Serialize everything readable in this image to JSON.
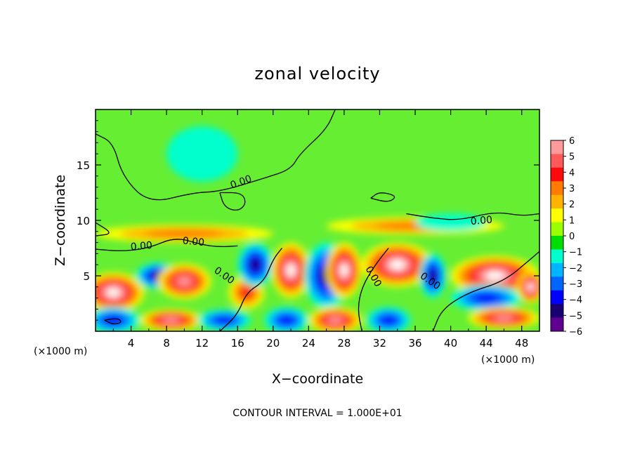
{
  "chart_data": {
    "type": "heatmap",
    "title": "zonal velocity",
    "xlabel": "X−coordinate",
    "ylabel": "Z−coordinate",
    "x_unit_left": "(×1000 m)",
    "x_unit_right": "(×1000 m)",
    "footer": "CONTOUR INTERVAL = 1.000E+01",
    "xlim": [
      0,
      50
    ],
    "ylim": [
      0,
      20
    ],
    "x_ticks": [
      4,
      8,
      12,
      16,
      20,
      24,
      28,
      32,
      36,
      40,
      44,
      48
    ],
    "y_ticks": [
      5,
      10,
      15
    ],
    "colorbar": {
      "labels": [
        "6",
        "5",
        "4",
        "3",
        "2",
        "1",
        "0",
        "−1",
        "−2",
        "−3",
        "−4",
        "−5",
        "−6"
      ],
      "colors": [
        "#ff9a9a",
        "#ff5a5a",
        "#ff0a0a",
        "#ff7a00",
        "#ffb300",
        "#ffff00",
        "#9aff00",
        "#00dd00",
        "#00ffcc",
        "#00b4ff",
        "#0064ff",
        "#0000ff",
        "#1a0070",
        "#600090"
      ],
      "saturated_positive": "#ffffff",
      "saturated_negative": "#ffffff"
    },
    "contour_labels": [
      {
        "text": "0.00",
        "x": 16.5,
        "z": 13.2,
        "angle": -20
      },
      {
        "text": "0.00",
        "x": 5.2,
        "z": 7.4,
        "angle": -5
      },
      {
        "text": "0.00",
        "x": 11.0,
        "z": 7.8,
        "angle": 5
      },
      {
        "text": "0.00",
        "x": 14.3,
        "z": 4.8,
        "angle": 35
      },
      {
        "text": "0.00",
        "x": 31.0,
        "z": 4.8,
        "angle": 60
      },
      {
        "text": "0.00",
        "x": 37.5,
        "z": 4.3,
        "angle": 35
      },
      {
        "text": "0.00",
        "x": 43.5,
        "z": 9.7,
        "angle": -5
      }
    ],
    "velocity_field": [
      {
        "x": 2,
        "z": 3.5,
        "value": 7,
        "rx": 3.5,
        "rz": 1.8
      },
      {
        "x": 7,
        "z": 5.0,
        "value": -5,
        "rx": 2.5,
        "rz": 1.2
      },
      {
        "x": 10,
        "z": 4.5,
        "value": 6,
        "rx": 3.0,
        "rz": 1.6
      },
      {
        "x": 2,
        "z": 1.0,
        "value": -4,
        "rx": 3.0,
        "rz": 1.2
      },
      {
        "x": 8.5,
        "z": 1.0,
        "value": 6,
        "rx": 3.5,
        "rz": 1.0
      },
      {
        "x": 14.5,
        "z": 1.0,
        "value": -4,
        "rx": 3.0,
        "rz": 1.0
      },
      {
        "x": 17,
        "z": 3.5,
        "value": 4,
        "rx": 2.0,
        "rz": 1.5
      },
      {
        "x": 18,
        "z": 6.0,
        "value": -5,
        "rx": 2.0,
        "rz": 2.0
      },
      {
        "x": 22,
        "z": 5.5,
        "value": 7,
        "rx": 2.2,
        "rz": 2.5
      },
      {
        "x": 26,
        "z": 5.0,
        "value": -5,
        "rx": 2.5,
        "rz": 3.0
      },
      {
        "x": 28,
        "z": 5.5,
        "value": 7,
        "rx": 2.0,
        "rz": 2.5
      },
      {
        "x": 34,
        "z": 6.0,
        "value": 7,
        "rx": 4.0,
        "rz": 2.0
      },
      {
        "x": 21.5,
        "z": 1.0,
        "value": -4,
        "rx": 2.5,
        "rz": 1.2
      },
      {
        "x": 27,
        "z": 1.0,
        "value": 6,
        "rx": 3.0,
        "rz": 1.2
      },
      {
        "x": 33,
        "z": 1.0,
        "value": -4,
        "rx": 2.5,
        "rz": 1.2
      },
      {
        "x": 38,
        "z": 5.0,
        "value": -5,
        "rx": 1.5,
        "rz": 2.0
      },
      {
        "x": 45,
        "z": 5.0,
        "value": 7,
        "rx": 5.0,
        "rz": 1.8
      },
      {
        "x": 44,
        "z": 3.0,
        "value": -4,
        "rx": 4.0,
        "rz": 1.2
      },
      {
        "x": 46,
        "z": 1.2,
        "value": 6,
        "rx": 4.0,
        "rz": 1.0
      },
      {
        "x": 49,
        "z": 4.0,
        "value": 7,
        "rx": 1.5,
        "rz": 1.5
      },
      {
        "x": 10,
        "z": 8.8,
        "value": 3,
        "rx": 10,
        "rz": 0.8
      },
      {
        "x": 36,
        "z": 9.5,
        "value": 3,
        "rx": 10,
        "rz": 0.8
      },
      {
        "x": 12,
        "z": 16.0,
        "value": -1.5,
        "rx": 4,
        "rz": 2.5
      },
      {
        "x": 40,
        "z": 9.8,
        "value": -1.5,
        "rx": 4,
        "rz": 0.8
      }
    ]
  }
}
